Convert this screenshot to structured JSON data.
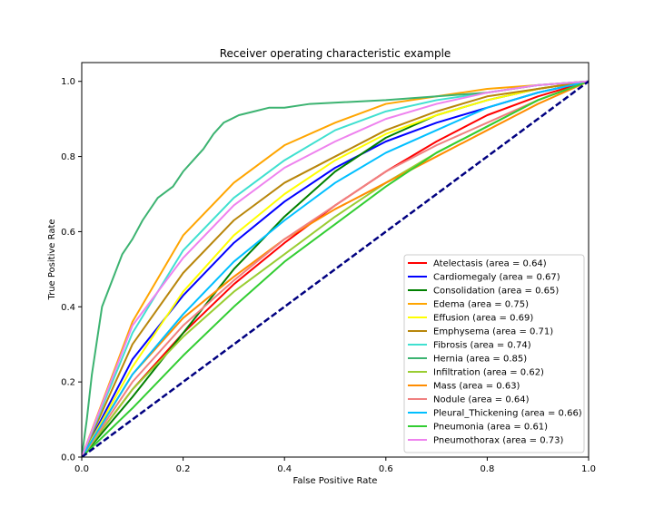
{
  "chart_data": {
    "type": "line",
    "title": "Receiver operating characteristic example",
    "xlabel": "False Positive Rate",
    "ylabel": "True Positive Rate",
    "xlim": [
      0.0,
      1.0
    ],
    "ylim": [
      0.0,
      1.05
    ],
    "xticks": [
      "0.0",
      "0.2",
      "0.4",
      "0.6",
      "0.8",
      "1.0"
    ],
    "yticks": [
      "0.0",
      "0.2",
      "0.4",
      "0.6",
      "0.8",
      "1.0"
    ],
    "grid": false,
    "legend_position": "lower right",
    "series": [
      {
        "name": "Atelectasis (area = 0.64)",
        "color": "#ff0000",
        "x": [
          0,
          0.1,
          0.2,
          0.3,
          0.4,
          0.5,
          0.6,
          0.7,
          0.8,
          0.9,
          1.0
        ],
        "y": [
          0,
          0.18,
          0.33,
          0.46,
          0.57,
          0.67,
          0.76,
          0.84,
          0.91,
          0.96,
          1.0
        ]
      },
      {
        "name": "Cardiomegaly (area = 0.67)",
        "color": "#0000ff",
        "x": [
          0,
          0.1,
          0.2,
          0.3,
          0.4,
          0.5,
          0.6,
          0.7,
          0.8,
          0.9,
          1.0
        ],
        "y": [
          0,
          0.26,
          0.43,
          0.57,
          0.68,
          0.77,
          0.84,
          0.89,
          0.93,
          0.97,
          1.0
        ]
      },
      {
        "name": "Consolidation (area = 0.65)",
        "color": "#008000",
        "x": [
          0,
          0.1,
          0.2,
          0.3,
          0.4,
          0.5,
          0.6,
          0.7,
          0.8,
          0.9,
          1.0
        ],
        "y": [
          0,
          0.16,
          0.33,
          0.5,
          0.64,
          0.76,
          0.85,
          0.91,
          0.95,
          0.98,
          1.0
        ]
      },
      {
        "name": "Edema (area = 0.75)",
        "color": "#ffa500",
        "x": [
          0,
          0.1,
          0.2,
          0.3,
          0.4,
          0.5,
          0.6,
          0.7,
          0.8,
          0.9,
          1.0
        ],
        "y": [
          0,
          0.36,
          0.59,
          0.73,
          0.83,
          0.89,
          0.94,
          0.96,
          0.98,
          0.99,
          1.0
        ]
      },
      {
        "name": "Effusion (area = 0.69)",
        "color": "#ffff00",
        "x": [
          0,
          0.1,
          0.2,
          0.3,
          0.4,
          0.5,
          0.6,
          0.7,
          0.8,
          0.9,
          1.0
        ],
        "y": [
          0,
          0.24,
          0.44,
          0.59,
          0.7,
          0.79,
          0.86,
          0.91,
          0.95,
          0.98,
          1.0
        ]
      },
      {
        "name": "Emphysema (area = 0.71)",
        "color": "#b8860b",
        "x": [
          0,
          0.1,
          0.2,
          0.3,
          0.4,
          0.5,
          0.6,
          0.7,
          0.8,
          0.9,
          1.0
        ],
        "y": [
          0,
          0.3,
          0.49,
          0.63,
          0.73,
          0.8,
          0.87,
          0.92,
          0.96,
          0.98,
          1.0
        ]
      },
      {
        "name": "Fibrosis (area = 0.74)",
        "color": "#40e0d0",
        "x": [
          0,
          0.1,
          0.2,
          0.3,
          0.4,
          0.5,
          0.6,
          0.7,
          0.8,
          0.9,
          1.0
        ],
        "y": [
          0,
          0.33,
          0.55,
          0.69,
          0.79,
          0.87,
          0.92,
          0.95,
          0.97,
          0.99,
          1.0
        ]
      },
      {
        "name": "Hernia (area = 0.85)",
        "color": "#3cb371",
        "x": [
          0,
          0.01,
          0.02,
          0.04,
          0.06,
          0.08,
          0.1,
          0.12,
          0.15,
          0.18,
          0.2,
          0.22,
          0.24,
          0.26,
          0.28,
          0.31,
          0.34,
          0.37,
          0.4,
          0.45,
          0.6,
          0.7,
          0.8,
          0.9,
          1.0
        ],
        "y": [
          0,
          0.1,
          0.22,
          0.4,
          0.47,
          0.54,
          0.58,
          0.63,
          0.69,
          0.72,
          0.76,
          0.79,
          0.82,
          0.86,
          0.89,
          0.91,
          0.92,
          0.93,
          0.93,
          0.94,
          0.95,
          0.96,
          0.97,
          0.99,
          1.0
        ]
      },
      {
        "name": "Infiltration (area = 0.62)",
        "color": "#9acd32",
        "x": [
          0,
          0.1,
          0.2,
          0.3,
          0.4,
          0.5,
          0.6,
          0.7,
          0.8,
          0.9,
          1.0
        ],
        "y": [
          0,
          0.18,
          0.32,
          0.44,
          0.54,
          0.64,
          0.73,
          0.81,
          0.88,
          0.95,
          1.0
        ]
      },
      {
        "name": "Mass (area = 0.63)",
        "color": "#ff8c00",
        "x": [
          0,
          0.1,
          0.2,
          0.3,
          0.4,
          0.5,
          0.6,
          0.7,
          0.8,
          0.9,
          1.0
        ],
        "y": [
          0,
          0.22,
          0.37,
          0.48,
          0.58,
          0.66,
          0.73,
          0.8,
          0.87,
          0.94,
          1.0
        ]
      },
      {
        "name": "Nodule (area = 0.64)",
        "color": "#f08080",
        "x": [
          0,
          0.1,
          0.2,
          0.3,
          0.4,
          0.5,
          0.6,
          0.7,
          0.8,
          0.9,
          1.0
        ],
        "y": [
          0,
          0.2,
          0.35,
          0.47,
          0.58,
          0.67,
          0.76,
          0.83,
          0.89,
          0.95,
          1.0
        ]
      },
      {
        "name": "Pleural_Thickening (area = 0.66)",
        "color": "#00bfff",
        "x": [
          0,
          0.1,
          0.2,
          0.3,
          0.4,
          0.5,
          0.6,
          0.7,
          0.8,
          0.9,
          1.0
        ],
        "y": [
          0,
          0.22,
          0.38,
          0.52,
          0.63,
          0.73,
          0.81,
          0.87,
          0.93,
          0.97,
          1.0
        ]
      },
      {
        "name": "Pneumonia (area = 0.61)",
        "color": "#32cd32",
        "x": [
          0,
          0.1,
          0.2,
          0.3,
          0.4,
          0.5,
          0.6,
          0.7,
          0.8,
          0.9,
          1.0
        ],
        "y": [
          0,
          0.13,
          0.27,
          0.4,
          0.52,
          0.62,
          0.72,
          0.81,
          0.88,
          0.95,
          1.0
        ]
      },
      {
        "name": "Pneumothorax (area = 0.73)",
        "color": "#ee82ee",
        "x": [
          0,
          0.1,
          0.2,
          0.3,
          0.4,
          0.5,
          0.6,
          0.7,
          0.8,
          0.9,
          1.0
        ],
        "y": [
          0,
          0.35,
          0.53,
          0.67,
          0.77,
          0.84,
          0.9,
          0.94,
          0.97,
          0.99,
          1.0
        ]
      }
    ],
    "reference_line": {
      "color": "#000080",
      "style": "dashed",
      "x": [
        0,
        1
      ],
      "y": [
        0,
        1
      ]
    }
  }
}
